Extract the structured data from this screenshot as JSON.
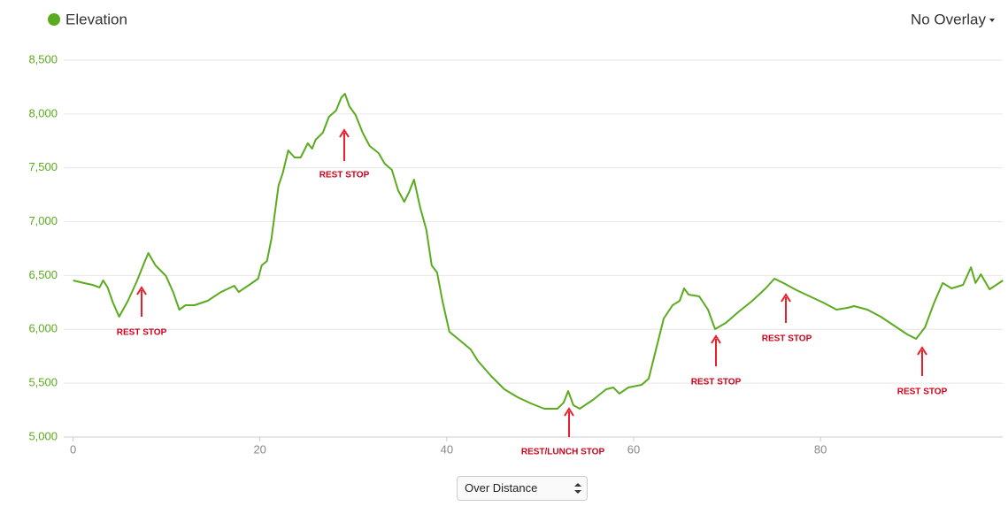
{
  "chart_data": {
    "type": "line",
    "overlay": "No Overlay",
    "mode": "Over Distance",
    "series": [
      {
        "name": "Elevation",
        "color": "#5aab1e",
        "values": [
          6454,
          6430,
          6413,
          6389,
          6454,
          6389,
          6249,
          6117,
          6265,
          6446,
          6610,
          6709,
          6594,
          6495,
          6347,
          6183,
          6224,
          6224,
          6265,
          6347,
          6405,
          6347,
          6413,
          6471,
          6594,
          6635,
          6840,
          7333,
          7457,
          7662,
          7596,
          7596,
          7728,
          7678,
          7761,
          7826,
          7974,
          8032,
          8155,
          8188,
          8073,
          7991,
          7826,
          7703,
          7637,
          7539,
          7481,
          7292,
          7185,
          7267,
          7391,
          7128,
          6923,
          6594,
          6528,
          6265,
          5978,
          5896,
          5813,
          5707,
          5567,
          5444,
          5370,
          5312,
          5263,
          5263,
          5320,
          5427,
          5296,
          5263,
          5345,
          5444,
          5460,
          5403,
          5460,
          5485,
          5542,
          5772,
          6101,
          6224,
          6265,
          6380,
          6323,
          6306,
          6183,
          6002,
          6060,
          6167,
          6265,
          6380,
          6471,
          6430,
          6364,
          6306,
          6249,
          6183,
          6200,
          6216,
          6183,
          6117,
          6035,
          5953,
          5912,
          6019,
          6241,
          6430,
          6380,
          6413,
          6577,
          6430,
          6512,
          6372,
          6454
        ]
      }
    ],
    "x": [
      0,
      1.14,
      2.09,
      2.84,
      3.22,
      3.7,
      4.27,
      4.93,
      5.88,
      6.82,
      7.58,
      8.06,
      8.82,
      9.95,
      10.71,
      11.37,
      12.04,
      12.99,
      14.41,
      15.83,
      17.25,
      17.73,
      18.86,
      19.81,
      20.19,
      20.76,
      21.23,
      21.99,
      22.46,
      23.03,
      23.7,
      24.36,
      25.12,
      25.59,
      25.97,
      26.73,
      27.39,
      28.15,
      28.72,
      29.1,
      29.57,
      30.24,
      31.0,
      31.75,
      32.7,
      33.36,
      34.12,
      34.79,
      35.45,
      35.92,
      36.49,
      37.16,
      37.82,
      38.39,
      38.96,
      39.53,
      40.28,
      41.42,
      42.56,
      43.32,
      44.74,
      46.16,
      47.58,
      49.0,
      50.43,
      51.85,
      52.51,
      52.99,
      53.55,
      54.22,
      55.64,
      57.06,
      57.82,
      58.48,
      59.43,
      60.85,
      61.61,
      62.27,
      63.22,
      64.17,
      64.93,
      65.4,
      65.88,
      67.02,
      67.96,
      68.72,
      69.86,
      71.28,
      72.7,
      74.12,
      75.07,
      76.02,
      77.44,
      78.86,
      80.28,
      81.71,
      82.94,
      83.6,
      85.02,
      86.45,
      87.87,
      89.29,
      90.24,
      91.18,
      92.13,
      93.08,
      94.03,
      95.26,
      96.11,
      96.59,
      97.16,
      98.1,
      99.53
    ],
    "xlim": [
      -1,
      99.5
    ],
    "xticks": [
      0,
      20,
      40,
      60,
      80
    ],
    "ylim": [
      5000,
      8500
    ],
    "yticks": [
      {
        "value": 5000,
        "label": "5,000"
      },
      {
        "value": 5500,
        "label": "5,500"
      },
      {
        "value": 6000,
        "label": "6,000"
      },
      {
        "value": 6500,
        "label": "6,500"
      },
      {
        "value": 7000,
        "label": "7,000"
      },
      {
        "value": 7500,
        "label": "7,500"
      },
      {
        "value": 8000,
        "label": "8,000"
      },
      {
        "value": 8500,
        "label": "8,500"
      }
    ],
    "grid": true,
    "annotations": [
      "REST STOP",
      "REST STOP",
      "REST/LUNCH STOP",
      "REST STOP",
      "REST STOP",
      "REST STOP"
    ]
  }
}
